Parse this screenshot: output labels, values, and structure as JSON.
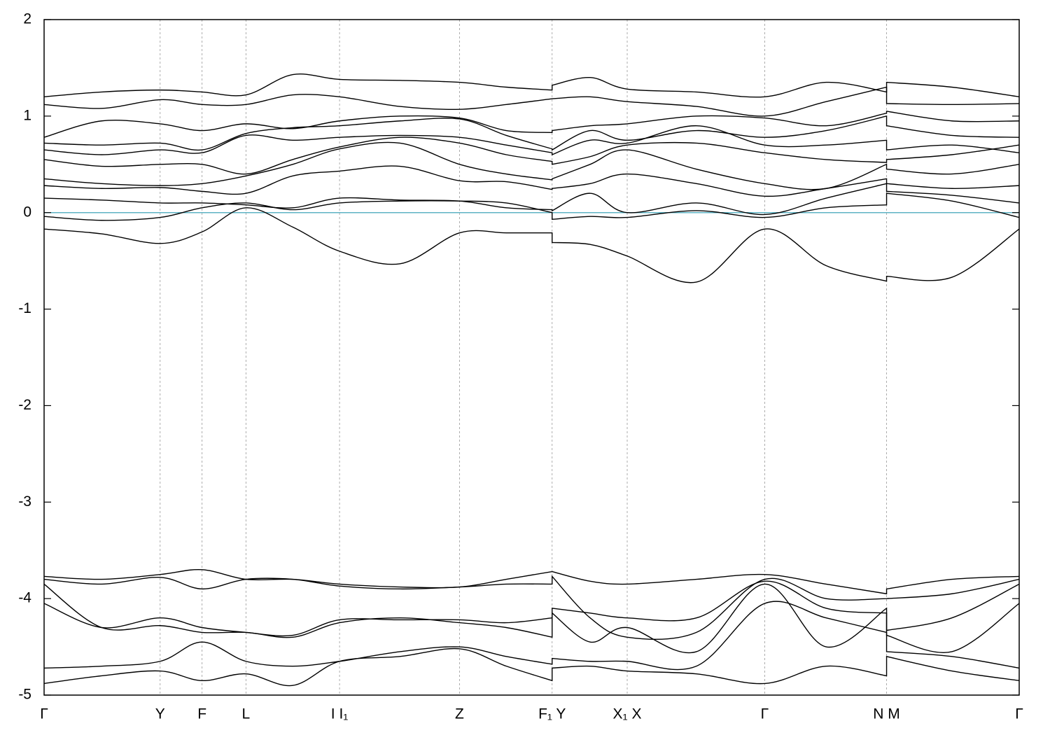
{
  "chart_data": {
    "type": "line",
    "x": [
      0,
      0.059,
      0.119,
      0.162,
      0.207,
      0.255,
      0.303,
      0.365,
      0.426,
      0.474,
      0.521,
      0.521,
      0.56,
      0.598,
      0.669,
      0.739,
      0.802,
      0.864,
      0.864,
      0.931,
      1.0
    ],
    "xlim": [
      0,
      1.0
    ],
    "xticks": [
      {
        "value": 0,
        "label": "Γ"
      },
      {
        "value": 0.119,
        "label": "Y"
      },
      {
        "value": 0.162,
        "label": "F"
      },
      {
        "value": 0.207,
        "label": "L"
      },
      {
        "value": 0.303,
        "label": "I  I₁"
      },
      {
        "value": 0.426,
        "label": "Z"
      },
      {
        "value": 0.521,
        "label": "F₁ Y"
      },
      {
        "value": 0.598,
        "label": "X₁ X"
      },
      {
        "value": 0.739,
        "label": "Γ"
      },
      {
        "value": 0.864,
        "label": "N M"
      },
      {
        "value": 1.0,
        "label": "Γ"
      }
    ],
    "ylim": [
      -5,
      2
    ],
    "yticks": [
      2,
      1,
      0,
      -1,
      -2,
      -3,
      -4,
      -5
    ],
    "xgrid": true,
    "line_color": "#000000",
    "fermi_level": 0,
    "fermi_color": "#5fb3c4",
    "series": [
      {
        "values": [
          -0.17,
          -0.22,
          -0.32,
          -0.2,
          0.05,
          -0.15,
          -0.4,
          -0.53,
          -0.21,
          -0.21,
          -0.21,
          -0.31,
          -0.33,
          -0.45,
          -0.72,
          -0.17,
          -0.55,
          -0.71,
          -0.66,
          -0.67,
          -0.17
        ]
      },
      {
        "values": [
          -0.04,
          -0.08,
          -0.05,
          0.05,
          0.1,
          0.03,
          0.1,
          0.12,
          0.12,
          0.1,
          0.0,
          -0.07,
          -0.04,
          -0.05,
          0.02,
          -0.05,
          0.05,
          0.08,
          0.2,
          0.12,
          -0.05
        ]
      },
      {
        "values": [
          0.15,
          0.13,
          0.1,
          0.1,
          0.08,
          0.05,
          0.15,
          0.13,
          0.12,
          0.05,
          0.03,
          0.02,
          0.2,
          0.0,
          0.1,
          -0.02,
          0.15,
          0.3,
          0.22,
          0.18,
          0.1
        ]
      },
      {
        "values": [
          0.28,
          0.25,
          0.26,
          0.22,
          0.2,
          0.38,
          0.43,
          0.48,
          0.33,
          0.32,
          0.24,
          0.25,
          0.3,
          0.4,
          0.3,
          0.17,
          0.25,
          0.35,
          0.3,
          0.25,
          0.28
        ]
      },
      {
        "values": [
          0.35,
          0.3,
          0.28,
          0.3,
          0.38,
          0.5,
          0.66,
          0.72,
          0.5,
          0.4,
          0.34,
          0.35,
          0.5,
          0.65,
          0.45,
          0.3,
          0.25,
          0.5,
          0.45,
          0.4,
          0.5
        ]
      },
      {
        "values": [
          0.55,
          0.48,
          0.5,
          0.5,
          0.4,
          0.55,
          0.68,
          0.78,
          0.72,
          0.6,
          0.53,
          0.5,
          0.58,
          0.7,
          0.72,
          0.62,
          0.55,
          0.52,
          0.55,
          0.6,
          0.7
        ]
      },
      {
        "values": [
          0.65,
          0.6,
          0.65,
          0.62,
          0.8,
          0.75,
          0.78,
          0.8,
          0.78,
          0.7,
          0.62,
          0.6,
          0.75,
          0.72,
          0.9,
          0.7,
          0.7,
          0.75,
          0.65,
          0.7,
          0.62
        ]
      },
      {
        "values": [
          0.72,
          0.7,
          0.72,
          0.65,
          0.82,
          0.88,
          0.9,
          0.95,
          0.97,
          0.8,
          0.66,
          0.65,
          0.85,
          0.75,
          0.85,
          0.78,
          0.85,
          1.0,
          0.9,
          0.8,
          0.78
        ]
      },
      {
        "values": [
          0.78,
          0.95,
          0.92,
          0.85,
          0.92,
          0.87,
          0.95,
          1.0,
          0.98,
          0.85,
          0.83,
          0.85,
          0.9,
          0.92,
          1.0,
          0.98,
          0.9,
          1.03,
          1.05,
          0.95,
          0.95
        ]
      },
      {
        "values": [
          1.12,
          1.08,
          1.17,
          1.12,
          1.12,
          1.22,
          1.2,
          1.1,
          1.07,
          1.12,
          1.18,
          1.18,
          1.2,
          1.15,
          1.1,
          1.0,
          1.15,
          1.3,
          1.13,
          1.12,
          1.13
        ]
      },
      {
        "values": [
          1.2,
          1.25,
          1.27,
          1.25,
          1.22,
          1.43,
          1.38,
          1.37,
          1.35,
          1.3,
          1.27,
          1.32,
          1.4,
          1.28,
          1.25,
          1.2,
          1.35,
          1.25,
          1.35,
          1.3,
          1.2
        ]
      },
      {
        "values": [
          -3.77,
          -3.8,
          -3.75,
          -3.7,
          -3.8,
          -3.8,
          -3.85,
          -3.88,
          -3.88,
          -3.8,
          -3.72,
          -3.72,
          -3.82,
          -3.85,
          -3.8,
          -3.75,
          -3.85,
          -3.95,
          -3.9,
          -3.8,
          -3.77
        ]
      },
      {
        "values": [
          -3.8,
          -3.85,
          -3.78,
          -3.9,
          -3.8,
          -3.8,
          -3.87,
          -3.9,
          -3.88,
          -3.85,
          -3.85,
          -3.77,
          -4.2,
          -4.4,
          -4.35,
          -3.8,
          -4.0,
          -4.0,
          -4.0,
          -3.95,
          -3.8
        ]
      },
      {
        "values": [
          -4.05,
          -4.3,
          -4.2,
          -4.3,
          -4.35,
          -4.38,
          -4.22,
          -4.22,
          -4.22,
          -4.25,
          -4.2,
          -4.1,
          -4.15,
          -4.2,
          -4.2,
          -3.82,
          -4.1,
          -4.15,
          -4.33,
          -4.2,
          -3.85
        ]
      },
      {
        "values": [
          -3.85,
          -4.3,
          -4.28,
          -4.35,
          -4.35,
          -4.4,
          -4.25,
          -4.2,
          -4.25,
          -4.3,
          -4.4,
          -4.15,
          -4.45,
          -4.3,
          -4.55,
          -3.85,
          -4.5,
          -4.1,
          -4.38,
          -4.55,
          -4.05
        ]
      },
      {
        "values": [
          -4.72,
          -4.7,
          -4.65,
          -4.45,
          -4.65,
          -4.7,
          -4.65,
          -4.55,
          -4.5,
          -4.6,
          -4.68,
          -4.62,
          -4.65,
          -4.65,
          -4.7,
          -4.05,
          -4.2,
          -4.35,
          -4.55,
          -4.6,
          -4.72
        ]
      },
      {
        "values": [
          -4.88,
          -4.8,
          -4.75,
          -4.85,
          -4.78,
          -4.9,
          -4.65,
          -4.6,
          -4.52,
          -4.7,
          -4.85,
          -4.72,
          -4.7,
          -4.75,
          -4.78,
          -4.88,
          -4.7,
          -4.8,
          -4.6,
          -4.75,
          -4.85
        ]
      }
    ]
  }
}
